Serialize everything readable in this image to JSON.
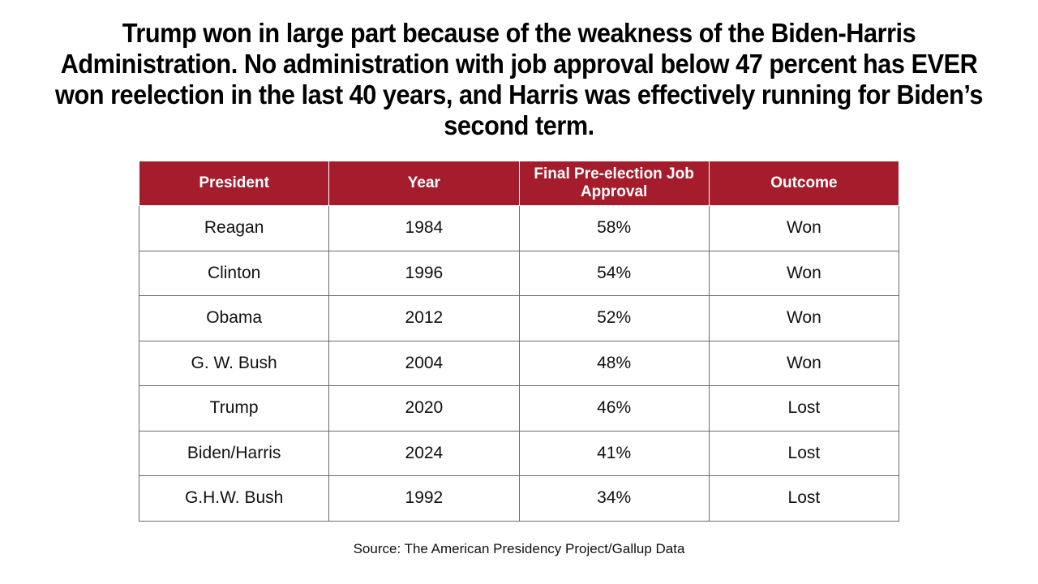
{
  "headline": "Trump won in large part because of the weakness of the Biden-Harris Administration. No administration with job approval below 47 percent has EVER won reelection in the last 40 years, and Harris was effectively running for Biden’s second term.",
  "accent_color": "#a51d2d",
  "table": {
    "headers": [
      "President",
      "Year",
      "Final Pre-election Job Approval",
      "Outcome"
    ],
    "rows": [
      [
        "Reagan",
        "1984",
        "58%",
        "Won"
      ],
      [
        "Clinton",
        "1996",
        "54%",
        "Won"
      ],
      [
        "Obama",
        "2012",
        "52%",
        "Won"
      ],
      [
        "G. W. Bush",
        "2004",
        "48%",
        "Won"
      ],
      [
        "Trump",
        "2020",
        "46%",
        "Lost"
      ],
      [
        "Biden/Harris",
        "2024",
        "41%",
        "Lost"
      ],
      [
        "G.H.W. Bush",
        "1992",
        "34%",
        "Lost"
      ]
    ]
  },
  "source": "Source: The American Presidency Project/Gallup Data"
}
